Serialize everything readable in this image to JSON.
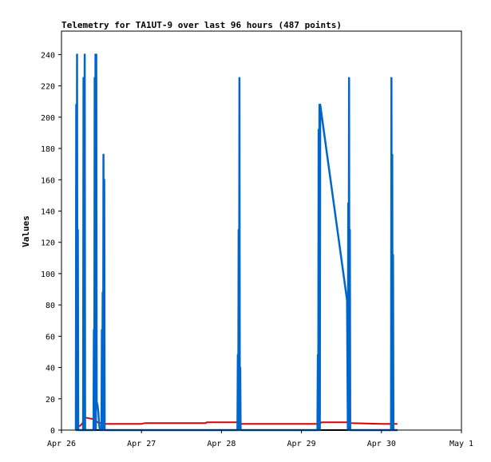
{
  "chart_data": {
    "type": "line",
    "title": "Telemetry for TA1UT-9 over last 96 hours (487 points)",
    "xlabel": "",
    "ylabel": "Values",
    "x_ticks": [
      "Apr 26",
      "Apr 27",
      "Apr 28",
      "Apr 29",
      "Apr 30",
      "May 1"
    ],
    "x_range_days": [
      0,
      5
    ],
    "ylim": [
      0,
      255
    ],
    "y_ticks": [
      0,
      20,
      40,
      60,
      80,
      100,
      120,
      140,
      160,
      180,
      200,
      220,
      240
    ],
    "grid": false,
    "legend": "none",
    "series": [
      {
        "color": "#000000",
        "points": [
          [
            0.19,
            0
          ],
          [
            0.285,
            0
          ],
          [
            0.288,
            60
          ],
          [
            0.292,
            0
          ],
          [
            0.45,
            0
          ],
          [
            1.0,
            0
          ],
          [
            2.0,
            0
          ],
          [
            3.0,
            0
          ],
          [
            4.0,
            0
          ],
          [
            4.2,
            0
          ]
        ]
      },
      {
        "color": "#dd0000",
        "points": [
          [
            0.19,
            4
          ],
          [
            0.2,
            2
          ],
          [
            0.24,
            3
          ],
          [
            0.27,
            5
          ],
          [
            0.3,
            8
          ],
          [
            0.4,
            7
          ],
          [
            0.45,
            5
          ],
          [
            0.52,
            4
          ],
          [
            0.6,
            4
          ],
          [
            1.0,
            4
          ],
          [
            1.05,
            4.5
          ],
          [
            1.5,
            4.5
          ],
          [
            1.8,
            4.5
          ],
          [
            1.82,
            5
          ],
          [
            2.2,
            5
          ],
          [
            2.22,
            4
          ],
          [
            2.5,
            4
          ],
          [
            3.0,
            4
          ],
          [
            3.23,
            4
          ],
          [
            3.25,
            5
          ],
          [
            3.6,
            5
          ],
          [
            3.62,
            4.5
          ],
          [
            4.0,
            4
          ],
          [
            4.2,
            4
          ]
        ]
      },
      {
        "color": "#0066cc",
        "points": [
          [
            0.18,
            0
          ],
          [
            0.185,
            208
          ],
          [
            0.19,
            0
          ],
          [
            0.195,
            240
          ],
          [
            0.2,
            0
          ],
          [
            0.205,
            128
          ],
          [
            0.21,
            0
          ],
          [
            0.27,
            0
          ],
          [
            0.275,
            225
          ],
          [
            0.28,
            0
          ],
          [
            0.29,
            240
          ],
          [
            0.295,
            0
          ],
          [
            0.4,
            0
          ],
          [
            0.405,
            64
          ],
          [
            0.41,
            0
          ],
          [
            0.415,
            225
          ],
          [
            0.42,
            0
          ],
          [
            0.425,
            240
          ],
          [
            0.43,
            0
          ],
          [
            0.435,
            240
          ],
          [
            0.44,
            18
          ],
          [
            0.45,
            16
          ],
          [
            0.46,
            12
          ],
          [
            0.47,
            4
          ],
          [
            0.48,
            0
          ],
          [
            0.5,
            0
          ],
          [
            0.505,
            64
          ],
          [
            0.51,
            0
          ],
          [
            0.515,
            88
          ],
          [
            0.52,
            0
          ],
          [
            0.525,
            176
          ],
          [
            0.53,
            0
          ],
          [
            0.535,
            160
          ],
          [
            0.54,
            0
          ],
          [
            0.6,
            0
          ],
          [
            1.0,
            0
          ],
          [
            1.5,
            0
          ],
          [
            2.0,
            0
          ],
          [
            2.2,
            0
          ],
          [
            2.205,
            48
          ],
          [
            2.21,
            0
          ],
          [
            2.215,
            128
          ],
          [
            2.22,
            0
          ],
          [
            2.225,
            225
          ],
          [
            2.23,
            0
          ],
          [
            2.235,
            40
          ],
          [
            2.24,
            0
          ],
          [
            2.6,
            0
          ],
          [
            3.0,
            0
          ],
          [
            3.2,
            0
          ],
          [
            3.205,
            48
          ],
          [
            3.21,
            0
          ],
          [
            3.215,
            192
          ],
          [
            3.22,
            0
          ],
          [
            3.225,
            208
          ],
          [
            3.23,
            0
          ],
          [
            3.235,
            208
          ],
          [
            3.57,
            83
          ],
          [
            3.58,
            0
          ],
          [
            3.585,
            145
          ],
          [
            3.59,
            0
          ],
          [
            3.595,
            225
          ],
          [
            3.6,
            0
          ],
          [
            3.605,
            128
          ],
          [
            3.61,
            0
          ],
          [
            3.9,
            0
          ],
          [
            4.12,
            0
          ],
          [
            4.125,
            225
          ],
          [
            4.13,
            0
          ],
          [
            4.135,
            176
          ],
          [
            4.14,
            0
          ],
          [
            4.145,
            112
          ],
          [
            4.15,
            0
          ],
          [
            4.2,
            0
          ]
        ]
      }
    ]
  }
}
